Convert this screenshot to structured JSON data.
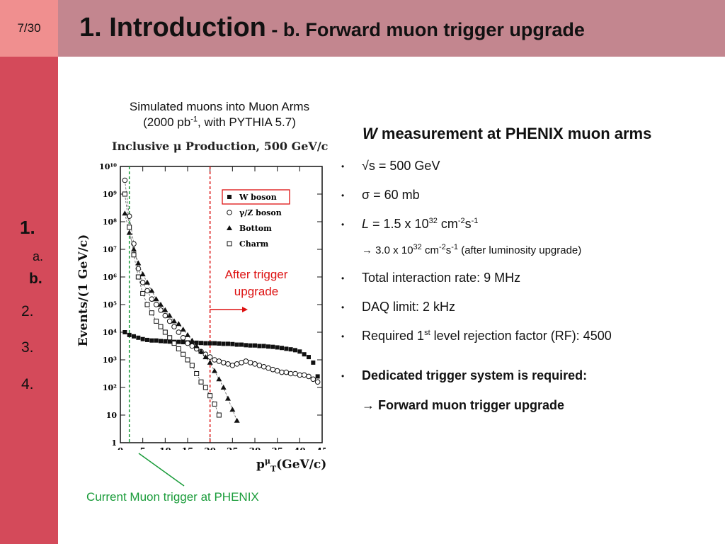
{
  "slide": {
    "page_number": "7/30",
    "title_main": "1. Introduction",
    "title_sub": " - b. Forward muon trigger upgrade"
  },
  "nav": {
    "section_1": "1.",
    "item_a": "a.",
    "item_b": "b.",
    "section_2": "2.",
    "section_3": "3.",
    "section_4": "4."
  },
  "figure": {
    "caption_line1": "Simulated muons into Muon Arms",
    "caption_line2_pre": "(2000 pb",
    "caption_line2_sup": "-1",
    "caption_line2_post": ", with PYTHIA 5.7)",
    "after_trigger_line1": "After trigger",
    "after_trigger_line2": "upgrade",
    "current_trigger": "Current Muon trigger at PHENIX",
    "colors": {
      "red": "#dd1111",
      "green": "#1a9c3a"
    }
  },
  "chart_data": {
    "type": "scatter",
    "title": "Inclusive μ Production, 500 GeV/c",
    "xlabel_main": "p",
    "xlabel_sub": "T",
    "xlabel_sup": "μ",
    "xlabel_unit": "(GeV/c)",
    "ylabel": "Events/(1 GeV/c)",
    "xlim": [
      0,
      45
    ],
    "ylim_log10": [
      0,
      10
    ],
    "log_y": true,
    "x_ticks": [
      "0",
      "5",
      "10",
      "15",
      "20",
      "25",
      "30",
      "35",
      "40",
      "45"
    ],
    "y_ticks": [
      "1",
      "10",
      "10²",
      "10³",
      "10⁴",
      "10⁵",
      "10⁶",
      "10⁷",
      "10⁸",
      "10⁹",
      "10¹⁰"
    ],
    "legend_position": "top-right",
    "series": [
      {
        "name": "W boson",
        "marker": "filled-square",
        "x": [
          1,
          2,
          3,
          4,
          5,
          6,
          7,
          8,
          9,
          10,
          11,
          12,
          13,
          14,
          15,
          16,
          17,
          18,
          19,
          20,
          21,
          22,
          23,
          24,
          25,
          26,
          27,
          28,
          29,
          30,
          31,
          32,
          33,
          34,
          35,
          36,
          37,
          38,
          39,
          40,
          41,
          42,
          43,
          44
        ],
        "log10_y": [
          4.0,
          3.9,
          3.85,
          3.8,
          3.75,
          3.72,
          3.7,
          3.7,
          3.68,
          3.67,
          3.66,
          3.65,
          3.65,
          3.64,
          3.63,
          3.62,
          3.62,
          3.61,
          3.6,
          3.6,
          3.6,
          3.59,
          3.58,
          3.58,
          3.57,
          3.55,
          3.55,
          3.53,
          3.52,
          3.52,
          3.5,
          3.5,
          3.48,
          3.47,
          3.45,
          3.43,
          3.4,
          3.38,
          3.35,
          3.3,
          3.2,
          3.1,
          2.9,
          2.4
        ]
      },
      {
        "name": "γ/Z boson",
        "marker": "open-circle",
        "x": [
          1,
          2,
          3,
          4,
          5,
          6,
          7,
          8,
          9,
          10,
          11,
          12,
          13,
          14,
          15,
          16,
          17,
          18,
          19,
          20,
          21,
          22,
          23,
          24,
          25,
          26,
          27,
          28,
          29,
          30,
          31,
          32,
          33,
          34,
          35,
          36,
          37,
          38,
          39,
          40,
          41,
          42,
          43,
          44
        ],
        "log10_y": [
          9.5,
          8.2,
          7.2,
          6.3,
          5.8,
          5.5,
          5.2,
          5.0,
          4.8,
          4.6,
          4.4,
          4.2,
          4.0,
          3.8,
          3.6,
          3.5,
          3.4,
          3.3,
          3.2,
          3.1,
          3.0,
          2.95,
          2.9,
          2.85,
          2.8,
          2.85,
          2.9,
          2.95,
          2.9,
          2.85,
          2.8,
          2.75,
          2.7,
          2.65,
          2.6,
          2.55,
          2.55,
          2.5,
          2.5,
          2.45,
          2.45,
          2.4,
          2.3,
          2.2
        ]
      },
      {
        "name": "Bottom",
        "marker": "filled-triangle",
        "x": [
          1,
          2,
          3,
          4,
          5,
          6,
          7,
          8,
          9,
          10,
          11,
          12,
          13,
          14,
          15,
          16,
          17,
          18,
          19,
          20,
          21,
          22,
          23,
          24,
          25,
          26
        ],
        "log10_y": [
          8.3,
          7.6,
          7.0,
          6.5,
          6.1,
          5.8,
          5.5,
          5.2,
          5.0,
          4.8,
          4.6,
          4.4,
          4.3,
          4.1,
          3.9,
          3.7,
          3.5,
          3.3,
          3.1,
          2.9,
          2.6,
          2.3,
          2.0,
          1.6,
          1.2,
          0.8
        ]
      },
      {
        "name": "Charm",
        "marker": "open-square",
        "x": [
          1,
          2,
          3,
          4,
          5,
          6,
          7,
          8,
          9,
          10,
          11,
          12,
          13,
          14,
          15,
          16,
          17,
          18,
          19,
          20,
          21,
          22
        ],
        "log10_y": [
          9.0,
          7.8,
          6.8,
          6.0,
          5.4,
          5.0,
          4.7,
          4.4,
          4.2,
          4.0,
          3.8,
          3.6,
          3.4,
          3.2,
          3.0,
          2.8,
          2.5,
          2.2,
          2.0,
          1.7,
          1.4,
          1.0
        ]
      }
    ]
  },
  "right": {
    "heading_italic": "W",
    "heading_rest": " measurement at PHENIX muon arms",
    "bullet_marker": "•",
    "b1": "√s = 500 GeV",
    "b2": "σ = 60 mb",
    "b3_italic": "L",
    "b3_pre": " = 1.5 x 10",
    "b3_sup1": "32",
    "b3_mid": " cm",
    "b3_sup2": "-2",
    "b3_s": "s",
    "b3_sup3": "-1",
    "b3_sub_pre": "→ 3.0 x 10",
    "b3_sub_sup1": "32",
    "b3_sub_mid": " cm",
    "b3_sub_sup2": "-2",
    "b3_sub_s": "s",
    "b3_sub_sup3": "-1",
    "b3_sub_post": " (after luminosity upgrade)",
    "b4": "Total interaction rate: 9 MHz",
    "b5": "DAQ limit: 2 kHz",
    "b6_pre": "Required 1",
    "b6_sup": "st",
    "b6_post": " level rejection factor (RF): 4500",
    "b7": "Dedicated trigger system is required:",
    "b7_sub": "→ Forward muon trigger upgrade"
  }
}
